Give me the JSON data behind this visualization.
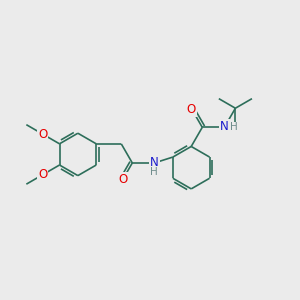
{
  "background_color": "#ebebeb",
  "bond_color": "#2d6e5a",
  "oxygen_color": "#e60000",
  "nitrogen_color": "#1a1acd",
  "hydrogen_color": "#6e8c8c",
  "line_width": 1.2,
  "figsize": [
    3.0,
    3.0
  ],
  "dpi": 100,
  "xlim": [
    0,
    10
  ],
  "ylim": [
    0,
    10
  ]
}
